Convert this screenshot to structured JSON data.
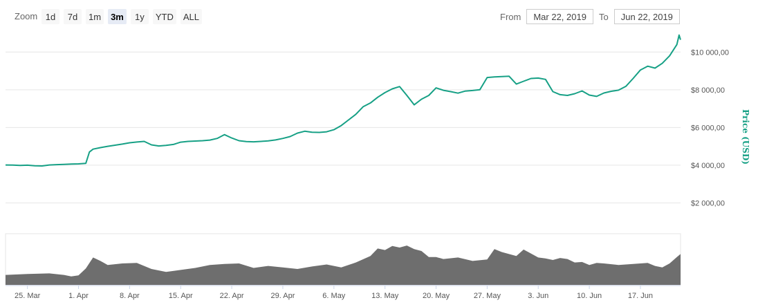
{
  "toolbar": {
    "zoom_label": "Zoom",
    "zoom_buttons": [
      "1d",
      "7d",
      "1m",
      "3m",
      "1y",
      "YTD",
      "ALL"
    ],
    "selected_zoom": "3m",
    "from_label": "From",
    "from_value": "Mar 22, 2019",
    "to_label": "To",
    "to_value": "Jun 22, 2019"
  },
  "chart_data": {
    "type": "area",
    "ylabel": "Price (USD)",
    "y_axis_position": "right",
    "ylim": [
      0,
      11000
    ],
    "y_ticks": [
      "$2 000,00",
      "$4 000,00",
      "$6 000,00",
      "$8 000,00",
      "$10 000,00"
    ],
    "y_tick_values": [
      2000,
      4000,
      6000,
      8000,
      10000
    ],
    "x_tick_labels": [
      "25. Mar",
      "1. Apr",
      "8. Apr",
      "15. Apr",
      "22. Apr",
      "29. Apr",
      "6. May",
      "13. May",
      "20. May",
      "27. May",
      "3. Jun",
      "10. Jun",
      "17. Jun"
    ],
    "x_tick_days": [
      3,
      10,
      17,
      24,
      31,
      38,
      45,
      52,
      59,
      66,
      73,
      80,
      87
    ],
    "x_range_days": [
      0,
      92.5
    ],
    "line_color": "#16a085",
    "volume_color": "#6e6e6e",
    "grid": true,
    "series": [
      {
        "values_day_price": [
          [
            0,
            4010
          ],
          [
            1,
            4005
          ],
          [
            2,
            3990
          ],
          [
            3,
            4000
          ],
          [
            4,
            3970
          ],
          [
            5,
            3960
          ],
          [
            6,
            4010
          ],
          [
            7,
            4030
          ],
          [
            8,
            4040
          ],
          [
            9,
            4060
          ],
          [
            10,
            4070
          ],
          [
            11,
            4100
          ],
          [
            11.5,
            4700
          ],
          [
            12,
            4850
          ],
          [
            13,
            4930
          ],
          [
            14,
            5000
          ],
          [
            15,
            5060
          ],
          [
            16,
            5120
          ],
          [
            17,
            5190
          ],
          [
            18,
            5230
          ],
          [
            19,
            5260
          ],
          [
            20,
            5080
          ],
          [
            21,
            5020
          ],
          [
            22,
            5050
          ],
          [
            23,
            5100
          ],
          [
            24,
            5220
          ],
          [
            25,
            5260
          ],
          [
            26,
            5280
          ],
          [
            27,
            5300
          ],
          [
            28,
            5330
          ],
          [
            29,
            5420
          ],
          [
            30,
            5620
          ],
          [
            31,
            5440
          ],
          [
            32,
            5300
          ],
          [
            33,
            5250
          ],
          [
            34,
            5240
          ],
          [
            35,
            5260
          ],
          [
            36,
            5290
          ],
          [
            37,
            5340
          ],
          [
            38,
            5420
          ],
          [
            39,
            5520
          ],
          [
            40,
            5700
          ],
          [
            41,
            5800
          ],
          [
            42,
            5750
          ],
          [
            43,
            5740
          ],
          [
            44,
            5770
          ],
          [
            45,
            5880
          ],
          [
            46,
            6100
          ],
          [
            47,
            6400
          ],
          [
            48,
            6700
          ],
          [
            49,
            7100
          ],
          [
            50,
            7300
          ],
          [
            51,
            7600
          ],
          [
            52,
            7850
          ],
          [
            53,
            8050
          ],
          [
            54,
            8170
          ],
          [
            55,
            7700
          ],
          [
            56,
            7200
          ],
          [
            57,
            7500
          ],
          [
            58,
            7700
          ],
          [
            59,
            8100
          ],
          [
            60,
            7970
          ],
          [
            61,
            7900
          ],
          [
            62,
            7820
          ],
          [
            63,
            7930
          ],
          [
            64,
            7960
          ],
          [
            65,
            8000
          ],
          [
            66,
            8650
          ],
          [
            67,
            8680
          ],
          [
            68,
            8700
          ],
          [
            69,
            8720
          ],
          [
            70,
            8300
          ],
          [
            71,
            8450
          ],
          [
            72,
            8600
          ],
          [
            73,
            8620
          ],
          [
            74,
            8550
          ],
          [
            75,
            7900
          ],
          [
            76,
            7740
          ],
          [
            77,
            7700
          ],
          [
            78,
            7790
          ],
          [
            79,
            7940
          ],
          [
            80,
            7720
          ],
          [
            81,
            7650
          ],
          [
            82,
            7830
          ],
          [
            83,
            7920
          ],
          [
            84,
            7980
          ],
          [
            85,
            8180
          ],
          [
            86,
            8600
          ],
          [
            87,
            9050
          ],
          [
            88,
            9250
          ],
          [
            89,
            9150
          ],
          [
            90,
            9400
          ],
          [
            91,
            9800
          ],
          [
            92,
            10400
          ],
          [
            92.3,
            10900
          ],
          [
            92.5,
            10650
          ]
        ]
      },
      {
        "name": "volume",
        "values_day_relative": [
          [
            0,
            0.2
          ],
          [
            3,
            0.22
          ],
          [
            6,
            0.23
          ],
          [
            8,
            0.2
          ],
          [
            9,
            0.17
          ],
          [
            10,
            0.19
          ],
          [
            11,
            0.33
          ],
          [
            12,
            0.55
          ],
          [
            13,
            0.48
          ],
          [
            14,
            0.4
          ],
          [
            16,
            0.43
          ],
          [
            18,
            0.44
          ],
          [
            20,
            0.32
          ],
          [
            22,
            0.26
          ],
          [
            24,
            0.3
          ],
          [
            26,
            0.34
          ],
          [
            28,
            0.4
          ],
          [
            30,
            0.42
          ],
          [
            32,
            0.43
          ],
          [
            34,
            0.34
          ],
          [
            36,
            0.38
          ],
          [
            38,
            0.35
          ],
          [
            40,
            0.32
          ],
          [
            42,
            0.37
          ],
          [
            44,
            0.41
          ],
          [
            46,
            0.35
          ],
          [
            48,
            0.45
          ],
          [
            50,
            0.58
          ],
          [
            51,
            0.73
          ],
          [
            52,
            0.7
          ],
          [
            53,
            0.78
          ],
          [
            54,
            0.75
          ],
          [
            55,
            0.79
          ],
          [
            56,
            0.72
          ],
          [
            57,
            0.68
          ],
          [
            58,
            0.56
          ],
          [
            59,
            0.56
          ],
          [
            60,
            0.52
          ],
          [
            62,
            0.55
          ],
          [
            64,
            0.48
          ],
          [
            66,
            0.51
          ],
          [
            67,
            0.72
          ],
          [
            68,
            0.66
          ],
          [
            69,
            0.62
          ],
          [
            70,
            0.58
          ],
          [
            71,
            0.71
          ],
          [
            72,
            0.63
          ],
          [
            73,
            0.55
          ],
          [
            74,
            0.53
          ],
          [
            75,
            0.5
          ],
          [
            76,
            0.54
          ],
          [
            77,
            0.52
          ],
          [
            78,
            0.45
          ],
          [
            79,
            0.46
          ],
          [
            80,
            0.4
          ],
          [
            81,
            0.44
          ],
          [
            82,
            0.43
          ],
          [
            84,
            0.4
          ],
          [
            86,
            0.42
          ],
          [
            88,
            0.44
          ],
          [
            89,
            0.38
          ],
          [
            90,
            0.35
          ],
          [
            91,
            0.43
          ],
          [
            92,
            0.56
          ],
          [
            92.5,
            0.62
          ]
        ]
      }
    ]
  }
}
